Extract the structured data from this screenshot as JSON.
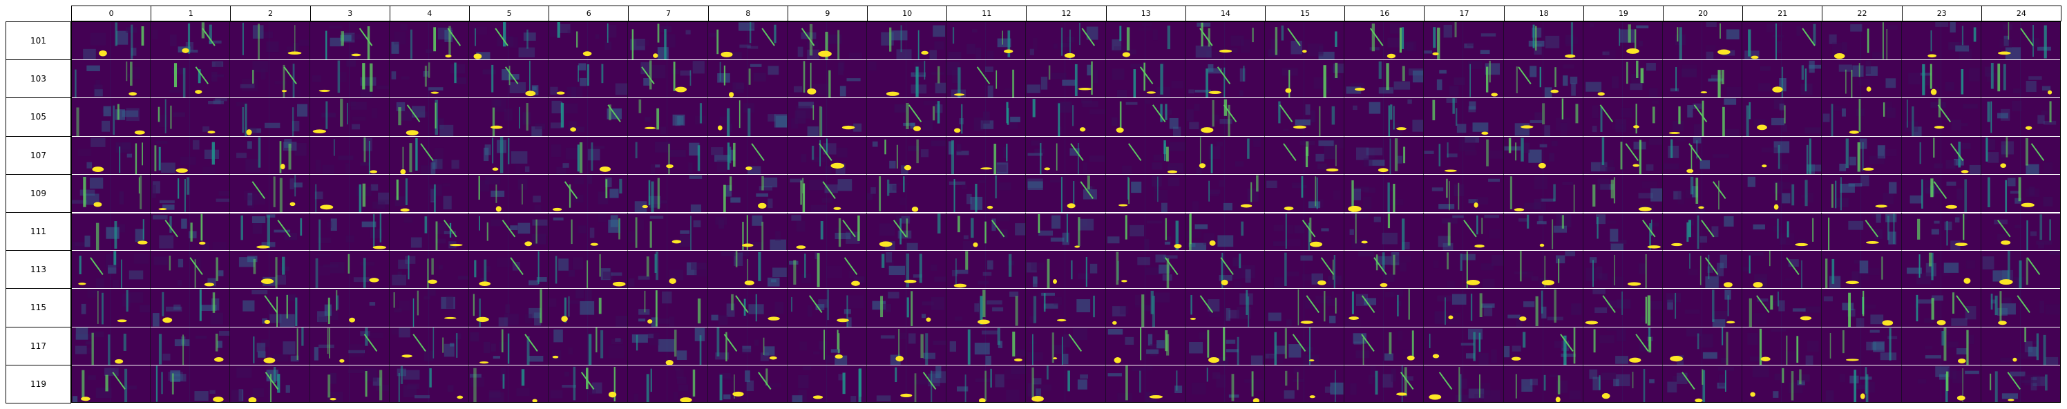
{
  "columns": [
    "0",
    "1",
    "2",
    "3",
    "4",
    "5",
    "6",
    "7",
    "8",
    "9",
    "10",
    "11",
    "12",
    "13",
    "14",
    "15",
    "16",
    "17",
    "18",
    "19",
    "20",
    "21",
    "22",
    "23",
    "24"
  ],
  "rows": [
    "101",
    "103",
    "105",
    "107",
    "109",
    "111",
    "113",
    "115",
    "117",
    "119"
  ],
  "colors": {
    "background": "#440154",
    "dark": "#3b0f5a",
    "mid": "#31688e",
    "teal": "#21918c",
    "green": "#5ec962",
    "yellow": "#fde725"
  }
}
